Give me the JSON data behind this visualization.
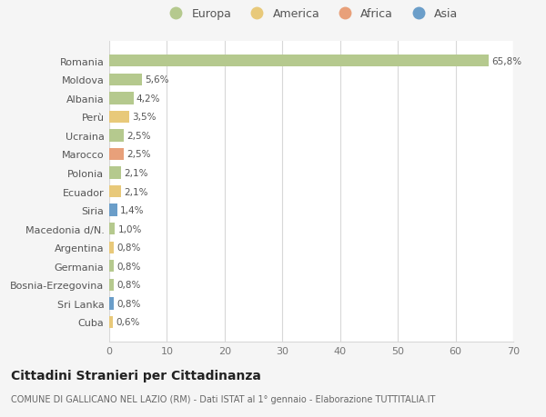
{
  "categories": [
    "Romania",
    "Moldova",
    "Albania",
    "Perù",
    "Ucraina",
    "Marocco",
    "Polonia",
    "Ecuador",
    "Siria",
    "Macedonia d/N.",
    "Argentina",
    "Germania",
    "Bosnia-Erzegovina",
    "Sri Lanka",
    "Cuba"
  ],
  "values": [
    65.8,
    5.6,
    4.2,
    3.5,
    2.5,
    2.5,
    2.1,
    2.1,
    1.4,
    1.0,
    0.8,
    0.8,
    0.8,
    0.8,
    0.6
  ],
  "labels": [
    "65,8%",
    "5,6%",
    "4,2%",
    "3,5%",
    "2,5%",
    "2,5%",
    "2,1%",
    "2,1%",
    "1,4%",
    "1,0%",
    "0,8%",
    "0,8%",
    "0,8%",
    "0,8%",
    "0,6%"
  ],
  "colors": [
    "#b5c98e",
    "#b5c98e",
    "#b5c98e",
    "#e8c97a",
    "#b5c98e",
    "#e8a07a",
    "#b5c98e",
    "#e8c97a",
    "#6b9ec9",
    "#b5c98e",
    "#e8c97a",
    "#b5c98e",
    "#b5c98e",
    "#6b9ec9",
    "#e8c97a"
  ],
  "legend_labels": [
    "Europa",
    "America",
    "Africa",
    "Asia"
  ],
  "legend_colors": [
    "#b5c98e",
    "#e8c97a",
    "#e8a07a",
    "#6b9ec9"
  ],
  "title": "Cittadini Stranieri per Cittadinanza",
  "subtitle": "COMUNE DI GALLICANO NEL LAZIO (RM) - Dati ISTAT al 1° gennaio - Elaborazione TUTTITALIA.IT",
  "xlim": [
    0,
    70
  ],
  "xticks": [
    0,
    10,
    20,
    30,
    40,
    50,
    60,
    70
  ],
  "bg_color": "#f5f5f5",
  "bar_bg_color": "#ffffff",
  "grid_color": "#d8d8d8"
}
